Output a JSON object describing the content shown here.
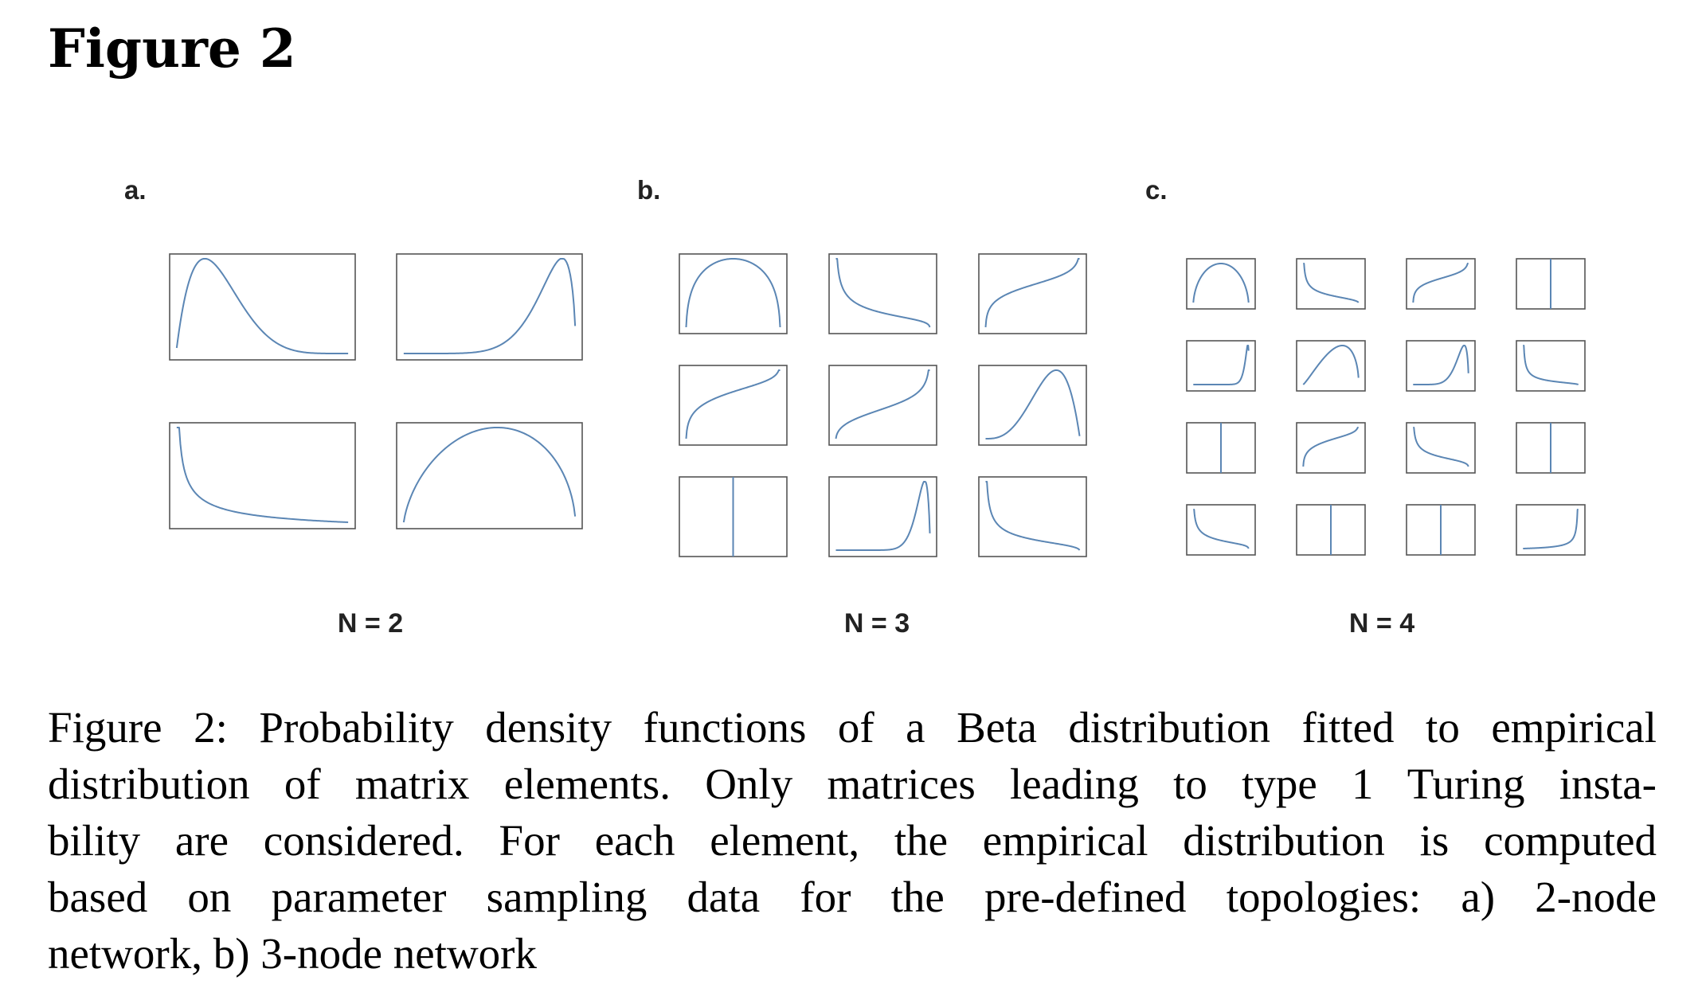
{
  "heading": "Figure 2",
  "panels": [
    {
      "letter": "a.",
      "n_label": "N = 2"
    },
    {
      "letter": "b.",
      "n_label": "N = 3"
    },
    {
      "letter": "c.",
      "n_label": "N = 4"
    }
  ],
  "caption_lines": [
    "Figure 2: Probability density functions of a Beta distribution fitted to empirical",
    "distribution of matrix elements. Only matrices leading to type 1 Turing insta-",
    "bility are considered. For each element, the empirical distribution is computed",
    "based on parameter sampling data for the pre-defined topologies: a) 2-node",
    "network, b) 3-node network"
  ],
  "colors": {
    "curve": "#5b86b4",
    "frame": "#555555"
  },
  "chart_data": [
    {
      "type": "line",
      "panel": "a",
      "grid": "2x2",
      "cells": [
        {
          "shape": "beta",
          "a": 2.0,
          "b": 6.0
        },
        {
          "shape": "beta",
          "a": 8.0,
          "b": 1.6
        },
        {
          "shape": "beta",
          "a": 0.5,
          "b": 1.0
        },
        {
          "shape": "beta",
          "a": 1.6,
          "b": 1.5
        }
      ]
    },
    {
      "type": "line",
      "panel": "b",
      "grid": "3x3",
      "cells": [
        {
          "shape": "beta",
          "a": 1.25,
          "b": 1.25
        },
        {
          "shape": "beta",
          "a": 0.7,
          "b": 1.1
        },
        {
          "shape": "beta",
          "a": 1.05,
          "b": 0.97
        },
        {
          "shape": "beta",
          "a": 1.1,
          "b": 0.97
        },
        {
          "shape": "beta",
          "a": 1.25,
          "b": 0.85
        },
        {
          "shape": "beta",
          "a": 4.0,
          "b": 2.0
        },
        {
          "shape": "vline"
        },
        {
          "shape": "beta",
          "a": 14.0,
          "b": 1.8
        },
        {
          "shape": "beta",
          "a": 0.55,
          "b": 1.3
        }
      ]
    },
    {
      "type": "line",
      "panel": "c",
      "grid": "4x4",
      "cells": [
        {
          "shape": "beta",
          "a": 1.5,
          "b": 1.5
        },
        {
          "shape": "beta",
          "a": 0.6,
          "b": 1.4
        },
        {
          "shape": "beta",
          "a": 1.05,
          "b": 0.97
        },
        {
          "shape": "vline"
        },
        {
          "shape": "beta",
          "a": 20.0,
          "b": 1.3
        },
        {
          "shape": "beta",
          "a": 2.2,
          "b": 1.5
        },
        {
          "shape": "beta",
          "a": 8.0,
          "b": 1.6
        },
        {
          "shape": "beta",
          "a": 0.4,
          "b": 1.5
        },
        {
          "shape": "vline"
        },
        {
          "shape": "beta",
          "a": 1.1,
          "b": 0.97
        },
        {
          "shape": "beta",
          "a": 0.7,
          "b": 1.2
        },
        {
          "shape": "vline"
        },
        {
          "shape": "beta",
          "a": 0.7,
          "b": 1.1
        },
        {
          "shape": "vline"
        },
        {
          "shape": "vline"
        },
        {
          "shape": "beta",
          "a": 1.0,
          "b": 0.3
        }
      ]
    }
  ]
}
